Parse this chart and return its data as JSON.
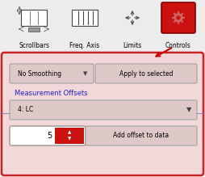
{
  "bg_color": "#ececec",
  "panel_bg": "#f2d8d8",
  "panel_border_color": "#cc2222",
  "widget_bg": "#dfc8c8",
  "widget_border": "#999999",
  "controls_btn_color": "#cc1111",
  "controls_btn_border": "#880000",
  "smoothing_label": "No Smoothing",
  "apply_label": "Apply to selected",
  "measurement_label": "Measurement Offsets",
  "measurement_color": "#2222cc",
  "dropdown_label": "4: LC",
  "offset_value": "5",
  "add_offset_label": "Add offset to data",
  "arrow_color": "#cc0000",
  "spinbox_bg": "#cc1111",
  "toolbar_labels": [
    "Scrollbars",
    "Freq. Axis",
    "Limits",
    "Controls"
  ],
  "icon_color": "#444444",
  "blue_line_color": "#7777bb",
  "label_fontsize": 5.5,
  "widget_fontsize": 5.5,
  "panel_label_fontsize": 6.0,
  "figw": 2.54,
  "figh": 2.19,
  "dpi": 100
}
